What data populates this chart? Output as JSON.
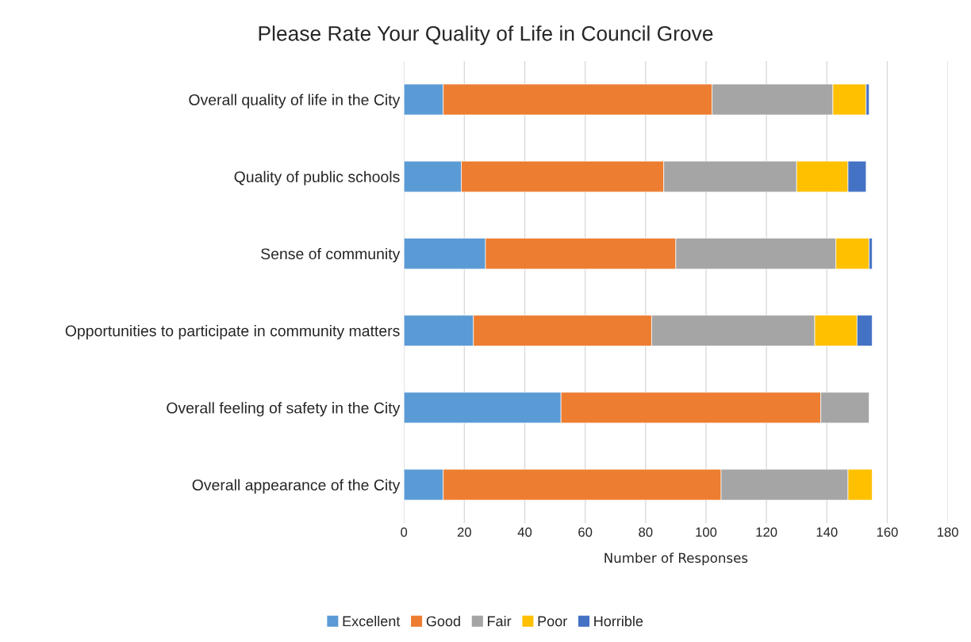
{
  "chart_data": {
    "type": "bar",
    "orientation": "horizontal",
    "stacked": true,
    "title": "Please Rate Your Quality of Life in Council Grove",
    "xlabel": "Number of Responses",
    "categories": [
      "Overall quality of life in the City",
      "Quality of public schools",
      "Sense of community",
      "Opportunities to participate in community matters",
      "Overall feeling of safety in the City",
      "Overall appearance of the City"
    ],
    "series": [
      {
        "name": "Excellent",
        "color": "#5b9bd5",
        "values": [
          13,
          19,
          27,
          23,
          52,
          13
        ]
      },
      {
        "name": "Good",
        "color": "#ed7d31",
        "values": [
          89,
          67,
          63,
          59,
          86,
          92
        ]
      },
      {
        "name": "Fair",
        "color": "#a5a5a5",
        "values": [
          40,
          44,
          53,
          54,
          16,
          42
        ]
      },
      {
        "name": "Poor",
        "color": "#ffc000",
        "values": [
          11,
          17,
          11,
          14,
          0,
          8
        ]
      },
      {
        "name": "Horrible",
        "color": "#4472c4",
        "values": [
          1,
          6,
          1,
          5,
          0,
          0
        ]
      }
    ],
    "xlim": [
      0,
      180
    ],
    "xticks": [
      0,
      20,
      40,
      60,
      80,
      100,
      120,
      140,
      160,
      180
    ],
    "grid": "x",
    "legend": "bottom"
  }
}
